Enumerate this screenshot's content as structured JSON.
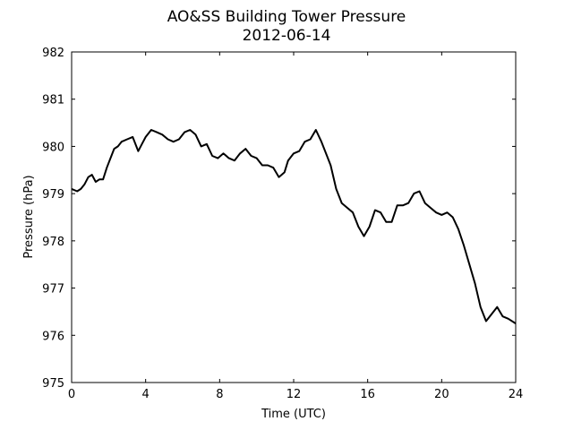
{
  "chart_data": {
    "type": "line",
    "title": "AO&SS Building Tower Pressure",
    "subtitle": "2012-06-14",
    "xlabel": "Time (UTC)",
    "ylabel": "Pressure (hPa)",
    "xlim": [
      0,
      24
    ],
    "ylim": [
      975,
      982
    ],
    "xticks": [
      0,
      4,
      8,
      12,
      16,
      20,
      24
    ],
    "yticks": [
      975,
      976,
      977,
      978,
      979,
      980,
      981,
      982
    ],
    "grid": false,
    "series": [
      {
        "color": "#000000",
        "x": [
          0,
          0.3,
          0.5,
          0.7,
          0.9,
          1.1,
          1.3,
          1.5,
          1.7,
          1.9,
          2.1,
          2.3,
          2.5,
          2.7,
          3.0,
          3.3,
          3.6,
          3.8,
          4.0,
          4.3,
          4.6,
          4.9,
          5.2,
          5.5,
          5.8,
          6.1,
          6.4,
          6.7,
          7.0,
          7.3,
          7.6,
          7.9,
          8.2,
          8.5,
          8.8,
          9.1,
          9.4,
          9.7,
          10.0,
          10.3,
          10.6,
          10.9,
          11.2,
          11.5,
          11.7,
          12.0,
          12.3,
          12.6,
          12.9,
          13.2,
          13.5,
          13.8,
          14.0,
          14.3,
          14.6,
          14.9,
          15.2,
          15.5,
          15.8,
          16.1,
          16.4,
          16.7,
          17.0,
          17.3,
          17.6,
          17.9,
          18.2,
          18.5,
          18.8,
          19.1,
          19.4,
          19.7,
          20.0,
          20.3,
          20.6,
          20.9,
          21.2,
          21.5,
          21.8,
          22.1,
          22.4,
          22.7,
          23.0,
          23.3,
          23.6,
          24.0
        ],
        "y": [
          979.1,
          979.05,
          979.1,
          979.2,
          979.35,
          979.4,
          979.25,
          979.3,
          979.3,
          979.55,
          979.75,
          979.95,
          980.0,
          980.1,
          980.15,
          980.2,
          979.9,
          980.05,
          980.2,
          980.35,
          980.3,
          980.25,
          980.15,
          980.1,
          980.15,
          980.3,
          980.35,
          980.25,
          980.0,
          980.05,
          979.8,
          979.75,
          979.85,
          979.75,
          979.7,
          979.85,
          979.95,
          979.8,
          979.75,
          979.6,
          979.6,
          979.55,
          979.35,
          979.45,
          979.7,
          979.85,
          979.9,
          980.1,
          980.15,
          980.35,
          980.1,
          979.8,
          979.6,
          979.1,
          978.8,
          978.7,
          978.6,
          978.3,
          978.1,
          978.3,
          978.65,
          978.6,
          978.4,
          978.4,
          978.75,
          978.75,
          978.8,
          979.0,
          979.05,
          978.8,
          978.7,
          978.6,
          978.55,
          978.6,
          978.5,
          978.25,
          977.9,
          977.5,
          977.1,
          976.6,
          976.3,
          976.45,
          976.6,
          976.4,
          976.35,
          976.25
        ]
      }
    ]
  }
}
